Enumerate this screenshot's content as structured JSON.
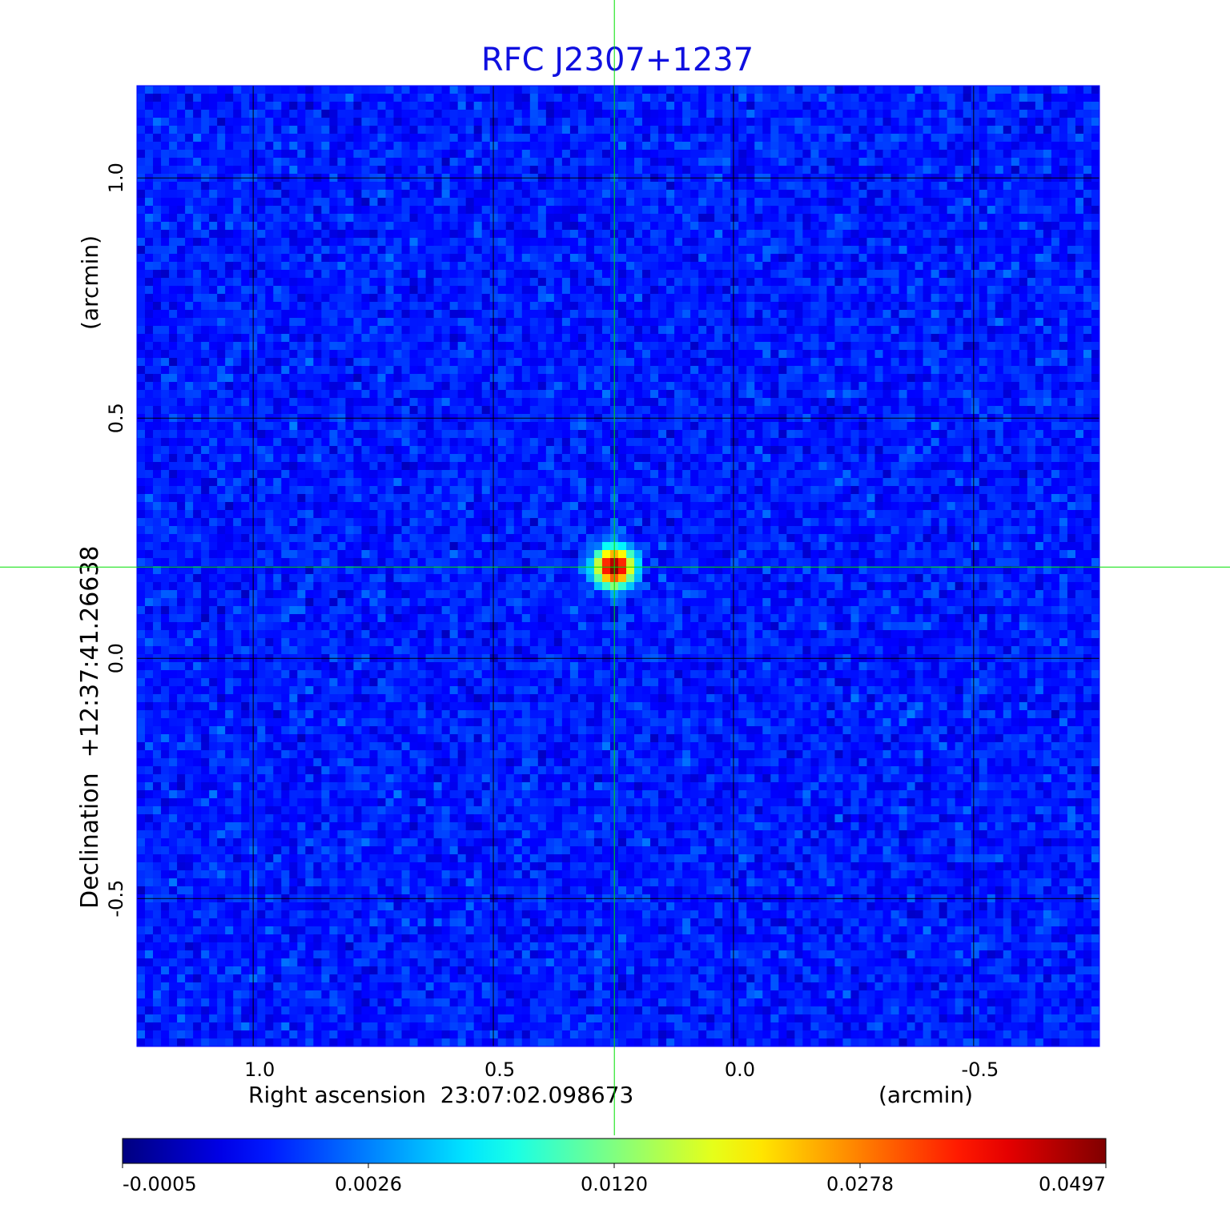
{
  "chart_data": {
    "type": "heatmap",
    "title": "RFC J2307+1237",
    "title_color": "#1010e0",
    "xlabel": "Right ascension  23:07:02.098673",
    "xunit": "(arcmin)",
    "ylabel": "Declination  +12:37:41.26638",
    "yunit": "(arcmin)",
    "xlim": [
      1.242,
      -0.762
    ],
    "ylim": [
      -0.808,
      1.192
    ],
    "xticks": [
      1.0,
      0.5,
      0.0,
      -0.5
    ],
    "xtick_labels": [
      "1.0",
      "0.5",
      "0.0",
      "-0.5"
    ],
    "yticks": [
      1.0,
      0.5,
      0.0,
      -0.5
    ],
    "ytick_labels": [
      "1.0",
      "0.5",
      "0.0",
      "-0.5"
    ],
    "grid": true,
    "colormap": "jet",
    "colorbar": {
      "placement": "bottom",
      "ticks": [
        -0.0005,
        0.0026,
        0.012,
        0.0278,
        0.0497
      ],
      "tick_labels": [
        "-0.0005",
        "0.0026",
        "0.0120",
        "0.0278",
        "0.0497"
      ]
    },
    "source": {
      "x": 0.248,
      "y": 0.19,
      "peak": 0.0497,
      "sigma_arcmin": 0.022
    },
    "noise_level": 0.0007,
    "crosshair": {
      "x": 0.248,
      "y": 0.19,
      "color": "#00e000"
    }
  }
}
